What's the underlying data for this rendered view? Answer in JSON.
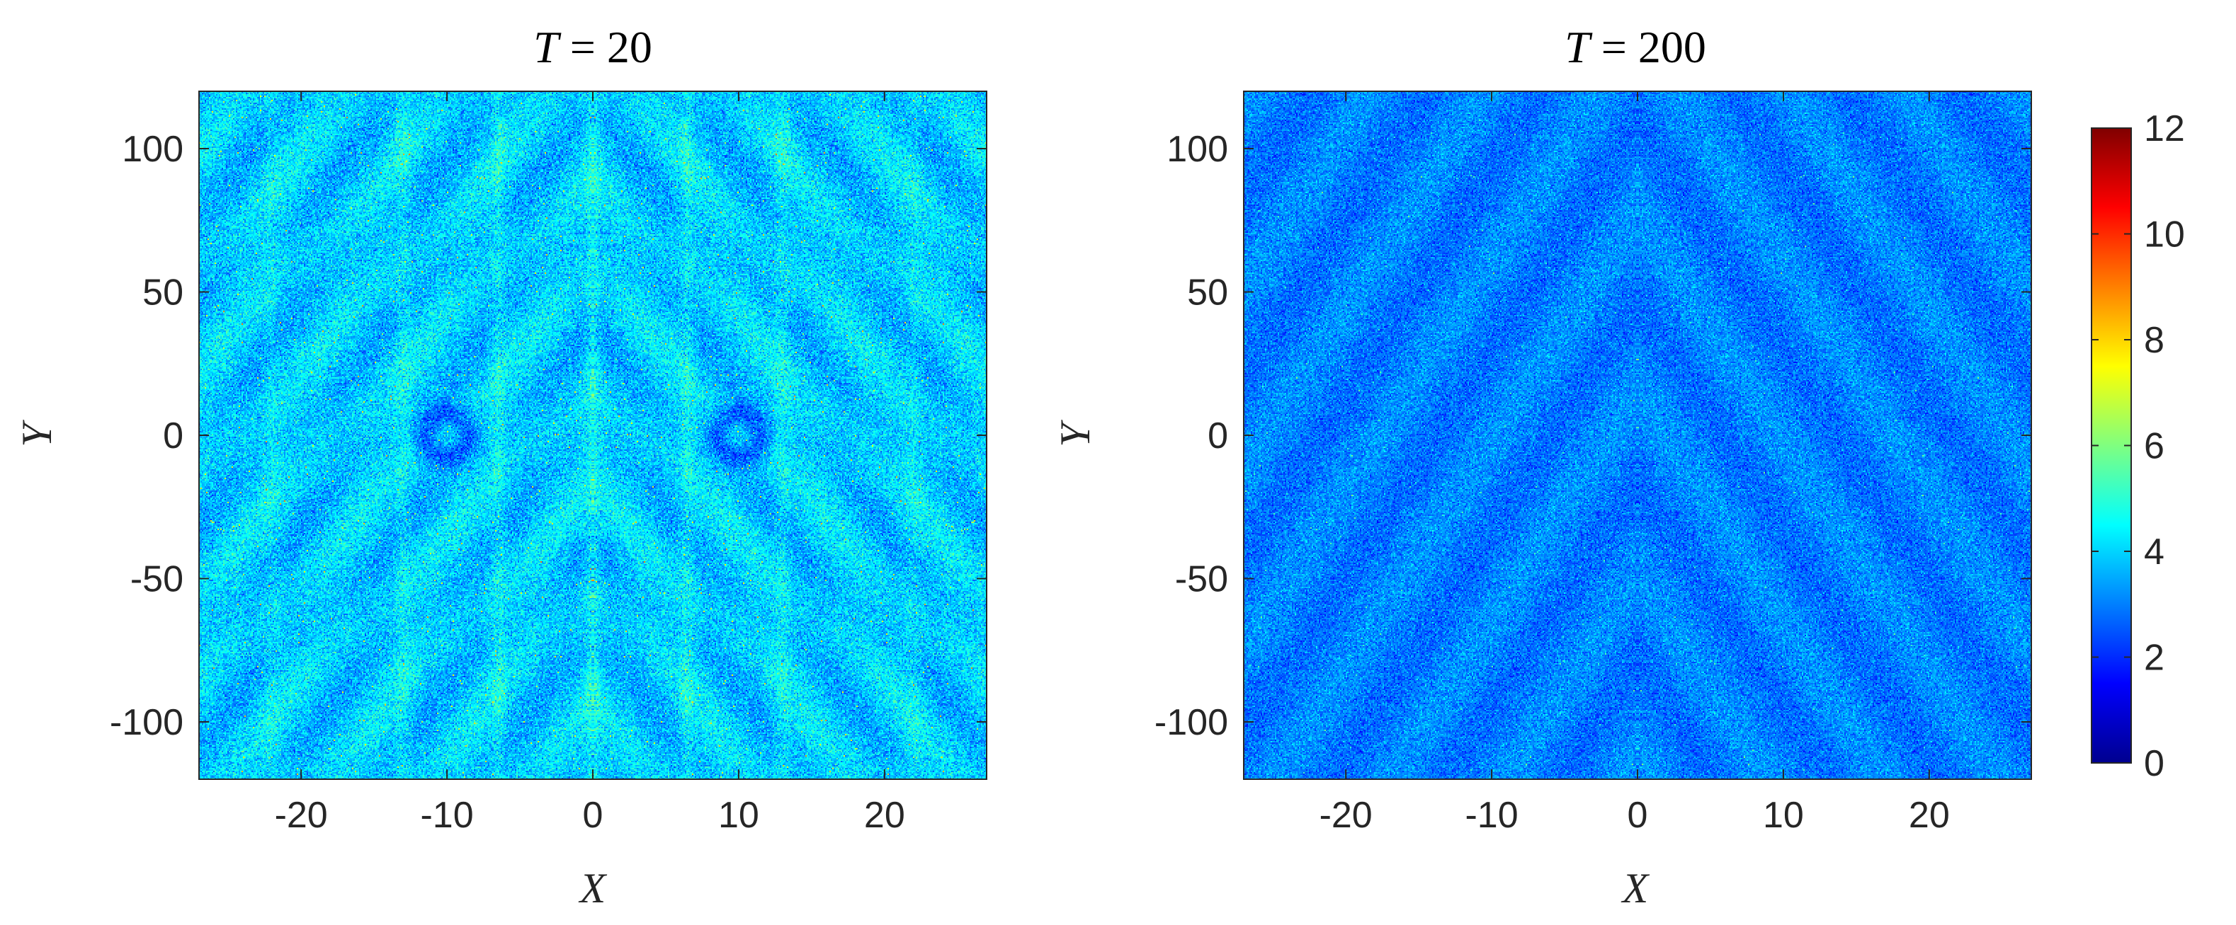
{
  "chart_data": [
    {
      "type": "heatmap",
      "title": {
        "var": "T",
        "eq": " = ",
        "value": "20"
      },
      "xlabel": "X",
      "ylabel": "Y",
      "xlim": [
        -27,
        27
      ],
      "ylim": [
        -120,
        120
      ],
      "xticks": [
        -20,
        -10,
        0,
        10,
        20
      ],
      "xtick_labels": [
        "-20",
        "-10",
        "0",
        "10",
        "20"
      ],
      "yticks": [
        -100,
        -50,
        0,
        50,
        100
      ],
      "ytick_labels": [
        "-100",
        "-50",
        "0",
        "50",
        "100"
      ],
      "field_description": {
        "mean": 3.9,
        "spread": 1.5,
        "max_observed": 9,
        "symmetry": "mirror about X=0",
        "features": "vertical bright streaks near X=0, ±6.5, ±13; dark rings near X=±10, Y=0"
      }
    },
    {
      "type": "heatmap",
      "title": {
        "var": "T",
        "eq": " = ",
        "value": "200"
      },
      "xlabel": "X",
      "ylabel": "Y",
      "xlim": [
        -27,
        27
      ],
      "ylim": [
        -120,
        120
      ],
      "xticks": [
        -20,
        -10,
        0,
        10,
        20
      ],
      "xtick_labels": [
        "-20",
        "-10",
        "0",
        "10",
        "20"
      ],
      "yticks": [
        -100,
        -50,
        0,
        50,
        100
      ],
      "ytick_labels": [
        "-100",
        "-50",
        "0",
        "50",
        "100"
      ],
      "field_description": {
        "mean": 3.0,
        "spread": 1.2,
        "max_observed": 6,
        "symmetry": "nearly uniform noise",
        "features": "fine-grained speckle, faint structure"
      }
    }
  ],
  "colorbar": {
    "colormap": "jet",
    "clim": [
      0,
      12
    ],
    "ticks": [
      0,
      2,
      4,
      6,
      8,
      10,
      12
    ],
    "tick_labels": [
      "0",
      "2",
      "4",
      "6",
      "8",
      "10",
      "12"
    ]
  }
}
